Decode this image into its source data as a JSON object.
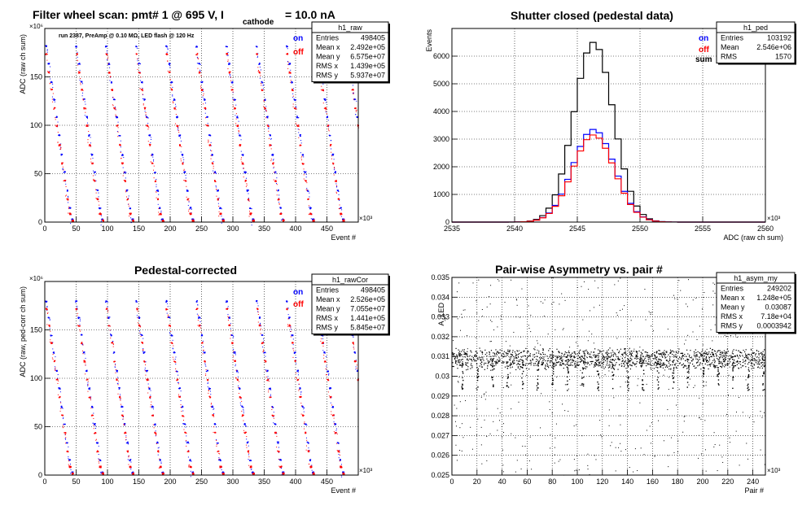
{
  "colors": {
    "on": "#0000ff",
    "off": "#ff0000",
    "sum": "#000000",
    "grid": "#000000",
    "frame": "#000000"
  },
  "panels": {
    "raw": {
      "title_prefix": "Filter wheel scan: pmt#   1 @   695 V, I",
      "title_sub": "cathode",
      "title_suffix": "= 10.0 nA",
      "subtitle": "run 2387, PreAmp @ 0.10 MΩ, LED flash @  120 Hz",
      "xlabel": "Event #",
      "ylabel": "ADC (raw ch sum)",
      "x_exp": "×10³",
      "y_exp": "×10⁶",
      "legend": [
        "on",
        "off"
      ],
      "stats_name": "h1_raw",
      "stats": [
        [
          "Entries",
          "498405"
        ],
        [
          "Mean x",
          "2.492e+05"
        ],
        [
          "Mean y",
          "6.575e+07"
        ],
        [
          "RMS x",
          "1.439e+05"
        ],
        [
          "RMS y",
          "5.937e+07"
        ]
      ]
    },
    "ped": {
      "title": "Shutter closed (pedestal data)",
      "xlabel": "ADC (raw ch sum)",
      "ylabel": "Events",
      "x_exp": "×10³",
      "legend": [
        "on",
        "off",
        "sum"
      ],
      "stats_name": "h1_ped",
      "stats": [
        [
          "Entries",
          "103192"
        ],
        [
          "Mean",
          "2.546e+06"
        ],
        [
          "RMS",
          "1570"
        ]
      ]
    },
    "cor": {
      "title": "Pedestal-corrected",
      "xlabel": "Event #",
      "ylabel": "ADC (raw, ped-corr ch sum)",
      "x_exp": "×10³",
      "y_exp": "×10⁶",
      "legend": [
        "on",
        "off"
      ],
      "stats_name": "h1_rawCor",
      "stats": [
        [
          "Entries",
          "498405"
        ],
        [
          "Mean x",
          "2.526e+05"
        ],
        [
          "Mean y",
          "7.055e+07"
        ],
        [
          "RMS x",
          "1.441e+05"
        ],
        [
          "RMS y",
          "5.845e+07"
        ]
      ]
    },
    "asym": {
      "title": "Pair-wise Asymmetry vs. pair #",
      "xlabel": "Pair #",
      "ylabel": "A_LED",
      "x_exp": "×10³",
      "stats_name": "h1_asym_my",
      "stats": [
        [
          "Entries",
          "249202"
        ],
        [
          "Mean x",
          "1.248e+05"
        ],
        [
          "Mean y",
          "0.03087"
        ],
        [
          "RMS x",
          "7.18e+04"
        ],
        [
          "RMS y",
          "0.0003942"
        ]
      ]
    }
  },
  "chart_data": [
    {
      "type": "scatter",
      "name": "raw",
      "x_ticks": [
        "0",
        "50",
        "100",
        "150",
        "200",
        "250",
        "300",
        "350",
        "400",
        "450"
      ],
      "y_ticks": [
        "0",
        "50",
        "100",
        "150"
      ],
      "xlim": [
        0,
        500
      ],
      "ylim": [
        0,
        200
      ],
      "series": [
        {
          "name": "on",
          "level_values": [
            182,
            164,
            145,
            127,
            109,
            90,
            70,
            52,
            33,
            15,
            3
          ]
        },
        {
          "name": "off",
          "level_values": [
            174,
            155,
            137,
            118,
            100,
            80,
            61,
            43,
            24,
            9,
            2
          ]
        }
      ],
      "cycle_period": 48,
      "grid": true
    },
    {
      "type": "line",
      "name": "ped",
      "x_ticks": [
        "2535",
        "2540",
        "2545",
        "2550",
        "2555",
        "2560"
      ],
      "y_ticks": [
        "0",
        "1000",
        "2000",
        "3000",
        "4000",
        "5000",
        "6000"
      ],
      "xlim": [
        2535,
        2560
      ],
      "ylim": [
        0,
        7000
      ],
      "mean": 2546.3,
      "rms": 1.57,
      "series": [
        {
          "name": "sum",
          "peak": 6500
        },
        {
          "name": "on",
          "peak": 3350
        },
        {
          "name": "off",
          "peak": 3150
        }
      ],
      "grid": true
    },
    {
      "type": "scatter",
      "name": "cor",
      "x_ticks": [
        "0",
        "50",
        "100",
        "150",
        "200",
        "250",
        "300",
        "350",
        "400",
        "450"
      ],
      "y_ticks": [
        "0",
        "50",
        "100",
        "150"
      ],
      "xlim": [
        0,
        500
      ],
      "ylim": [
        0,
        200
      ],
      "series": [
        {
          "name": "on",
          "level_values": [
            180,
            163,
            145,
            127,
            108,
            90,
            71,
            53,
            34,
            16,
            3
          ]
        },
        {
          "name": "off",
          "level_values": [
            172,
            155,
            137,
            118,
            99,
            81,
            62,
            44,
            25,
            9,
            2
          ]
        }
      ],
      "cycle_period": 48,
      "grid": true
    },
    {
      "type": "scatter",
      "name": "asym",
      "x_ticks": [
        "0",
        "20",
        "40",
        "60",
        "80",
        "100",
        "120",
        "140",
        "160",
        "180",
        "200",
        "220",
        "240"
      ],
      "y_ticks": [
        "0.025",
        "0.026",
        "0.027",
        "0.028",
        "0.029",
        "0.03",
        "0.031",
        "0.032",
        "0.033",
        "0.034",
        "0.035"
      ],
      "xlim": [
        0,
        250
      ],
      "ylim": [
        0.025,
        0.035
      ],
      "band_center": 0.0309,
      "band_halfwidth": 0.00045,
      "dip_period": 12,
      "dip_min": 0.0293,
      "grid": true
    }
  ]
}
